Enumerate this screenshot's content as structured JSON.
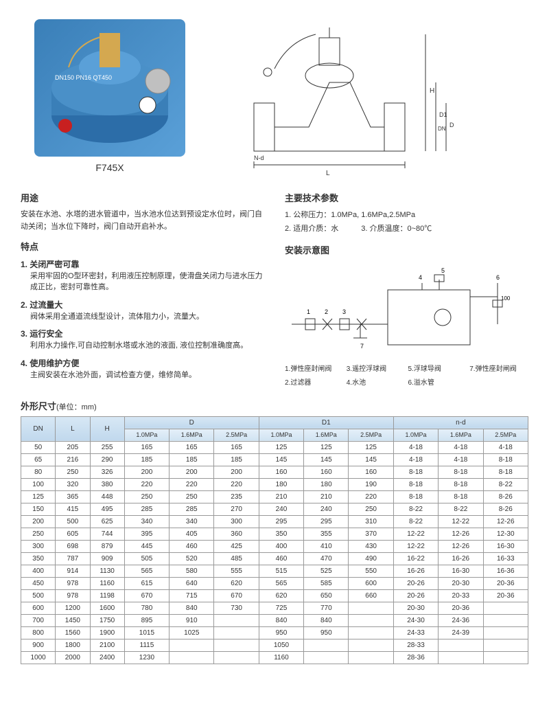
{
  "product": {
    "name": "F745X",
    "markings": "DN150\nPN16\nQT450"
  },
  "usage": {
    "title": "用途",
    "text": "安装在水池、水塔的进水管道中，当水池水位达到预设定水位时，阀门自动关闭；当水位下降时，阀门自动开启补水。"
  },
  "features": {
    "title": "特点",
    "items": [
      {
        "num": "1.",
        "title": "关闭严密可靠",
        "desc": "采用牢固的O型环密封，利用液压控制原理，使滑盘关闭力与进水压力成正比，密封可靠性高。"
      },
      {
        "num": "2.",
        "title": "过流量大",
        "desc": "阀体采用全通道流线型设计，流体阻力小，流量大。"
      },
      {
        "num": "3.",
        "title": "运行安全",
        "desc": "利用水力操作,可自动控制水塔或水池的液面, 液位控制准确度高。"
      },
      {
        "num": "4.",
        "title": "使用维护方便",
        "desc": "主阀安装在水池外面，调试检查方便，维修简单。"
      }
    ]
  },
  "params": {
    "title": "主要技术参数",
    "lines": [
      "1. 公称压力：1.0MPa, 1.6MPa,2.5MPa",
      "2. 适用介质：水　　　3. 介质温度：0~80℃"
    ]
  },
  "install": {
    "title": "安装示意图",
    "legend": [
      "1.弹性座封闸阀",
      "3.遥控浮球阀",
      "5.浮球导阀",
      "7.弹性座封闸阀",
      "2.过滤器",
      "4.水池",
      "6.溢水管",
      ""
    ]
  },
  "table": {
    "title": "外形尺寸",
    "unit": "(单位：mm)",
    "headers": [
      "DN",
      "L",
      "H",
      "D",
      "D1",
      "n-d"
    ],
    "subheaders": [
      "1.0MPa",
      "1.6MPa",
      "2.5MPa",
      "1.0MPa",
      "1.6MPa",
      "2.5MPa",
      "1.0MPa",
      "1.6MPa",
      "2.5MPa"
    ],
    "rows": [
      [
        "50",
        "205",
        "255",
        "165",
        "165",
        "165",
        "125",
        "125",
        "125",
        "4-18",
        "4-18",
        "4-18"
      ],
      [
        "65",
        "216",
        "290",
        "185",
        "185",
        "185",
        "145",
        "145",
        "145",
        "4-18",
        "4-18",
        "8-18"
      ],
      [
        "80",
        "250",
        "326",
        "200",
        "200",
        "200",
        "160",
        "160",
        "160",
        "8-18",
        "8-18",
        "8-18"
      ],
      [
        "100",
        "320",
        "380",
        "220",
        "220",
        "220",
        "180",
        "180",
        "190",
        "8-18",
        "8-18",
        "8-22"
      ],
      [
        "125",
        "365",
        "448",
        "250",
        "250",
        "235",
        "210",
        "210",
        "220",
        "8-18",
        "8-18",
        "8-26"
      ],
      [
        "150",
        "415",
        "495",
        "285",
        "285",
        "270",
        "240",
        "240",
        "250",
        "8-22",
        "8-22",
        "8-26"
      ],
      [
        "200",
        "500",
        "625",
        "340",
        "340",
        "300",
        "295",
        "295",
        "310",
        "8-22",
        "12-22",
        "12-26"
      ],
      [
        "250",
        "605",
        "744",
        "395",
        "405",
        "360",
        "350",
        "355",
        "370",
        "12-22",
        "12-26",
        "12-30"
      ],
      [
        "300",
        "698",
        "879",
        "445",
        "460",
        "425",
        "400",
        "410",
        "430",
        "12-22",
        "12-26",
        "16-30"
      ],
      [
        "350",
        "787",
        "909",
        "505",
        "520",
        "485",
        "460",
        "470",
        "490",
        "16-22",
        "16-26",
        "16-33"
      ],
      [
        "400",
        "914",
        "1130",
        "565",
        "580",
        "555",
        "515",
        "525",
        "550",
        "16-26",
        "16-30",
        "16-36"
      ],
      [
        "450",
        "978",
        "1160",
        "615",
        "640",
        "620",
        "565",
        "585",
        "600",
        "20-26",
        "20-30",
        "20-36"
      ],
      [
        "500",
        "978",
        "1198",
        "670",
        "715",
        "670",
        "620",
        "650",
        "660",
        "20-26",
        "20-33",
        "20-36"
      ],
      [
        "600",
        "1200",
        "1600",
        "780",
        "840",
        "730",
        "725",
        "770",
        "",
        "20-30",
        "20-36",
        ""
      ],
      [
        "700",
        "1450",
        "1750",
        "895",
        "910",
        "",
        "840",
        "840",
        "",
        "24-30",
        "24-36",
        ""
      ],
      [
        "800",
        "1560",
        "1900",
        "1015",
        "1025",
        "",
        "950",
        "950",
        "",
        "24-33",
        "24-39",
        ""
      ],
      [
        "900",
        "1800",
        "2100",
        "1115",
        "",
        "",
        "1050",
        "",
        "",
        "28-33",
        "",
        ""
      ],
      [
        "1000",
        "2000",
        "2400",
        "1230",
        "",
        "",
        "1160",
        "",
        "",
        "28-36",
        "",
        ""
      ]
    ]
  },
  "diagram_labels": {
    "L": "L",
    "H": "H",
    "D": "D",
    "D1": "D1",
    "DN": "DN",
    "Nd": "N-d"
  }
}
